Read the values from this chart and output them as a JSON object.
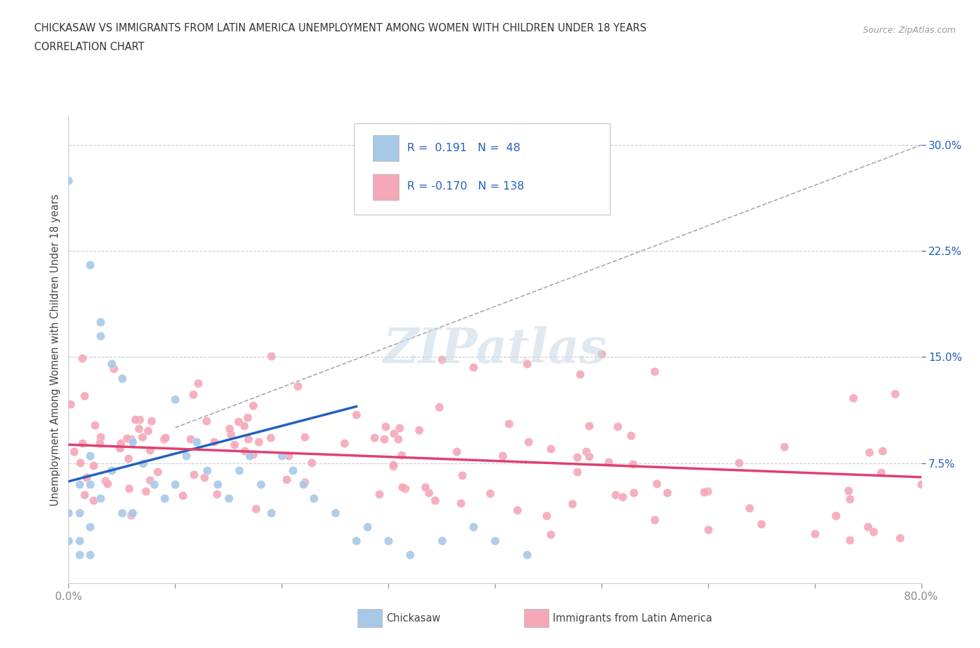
{
  "title_line1": "CHICKASAW VS IMMIGRANTS FROM LATIN AMERICA UNEMPLOYMENT AMONG WOMEN WITH CHILDREN UNDER 18 YEARS",
  "title_line2": "CORRELATION CHART",
  "source_text": "Source: ZipAtlas.com",
  "ylabel": "Unemployment Among Women with Children Under 18 years",
  "xlim": [
    0.0,
    0.8
  ],
  "ylim": [
    -0.01,
    0.32
  ],
  "chickasaw_color": "#a8c8e8",
  "immigrant_color": "#f4a8b8",
  "chickasaw_line_color": "#2060c0",
  "immigrant_line_color": "#e04070",
  "R_chickasaw": 0.191,
  "N_chickasaw": 48,
  "R_immigrant": -0.17,
  "N_immigrant": 138,
  "watermark": "ZIPatlas",
  "legend_label_1": "Chickasaw",
  "legend_label_2": "Immigrants from Latin America",
  "title_fontsize": 11,
  "legend_text_color": "#2060c0",
  "axis_text_color": "#2060c0",
  "source_color": "#999999",
  "grid_color": "#cccccc",
  "spine_color": "#cccccc"
}
